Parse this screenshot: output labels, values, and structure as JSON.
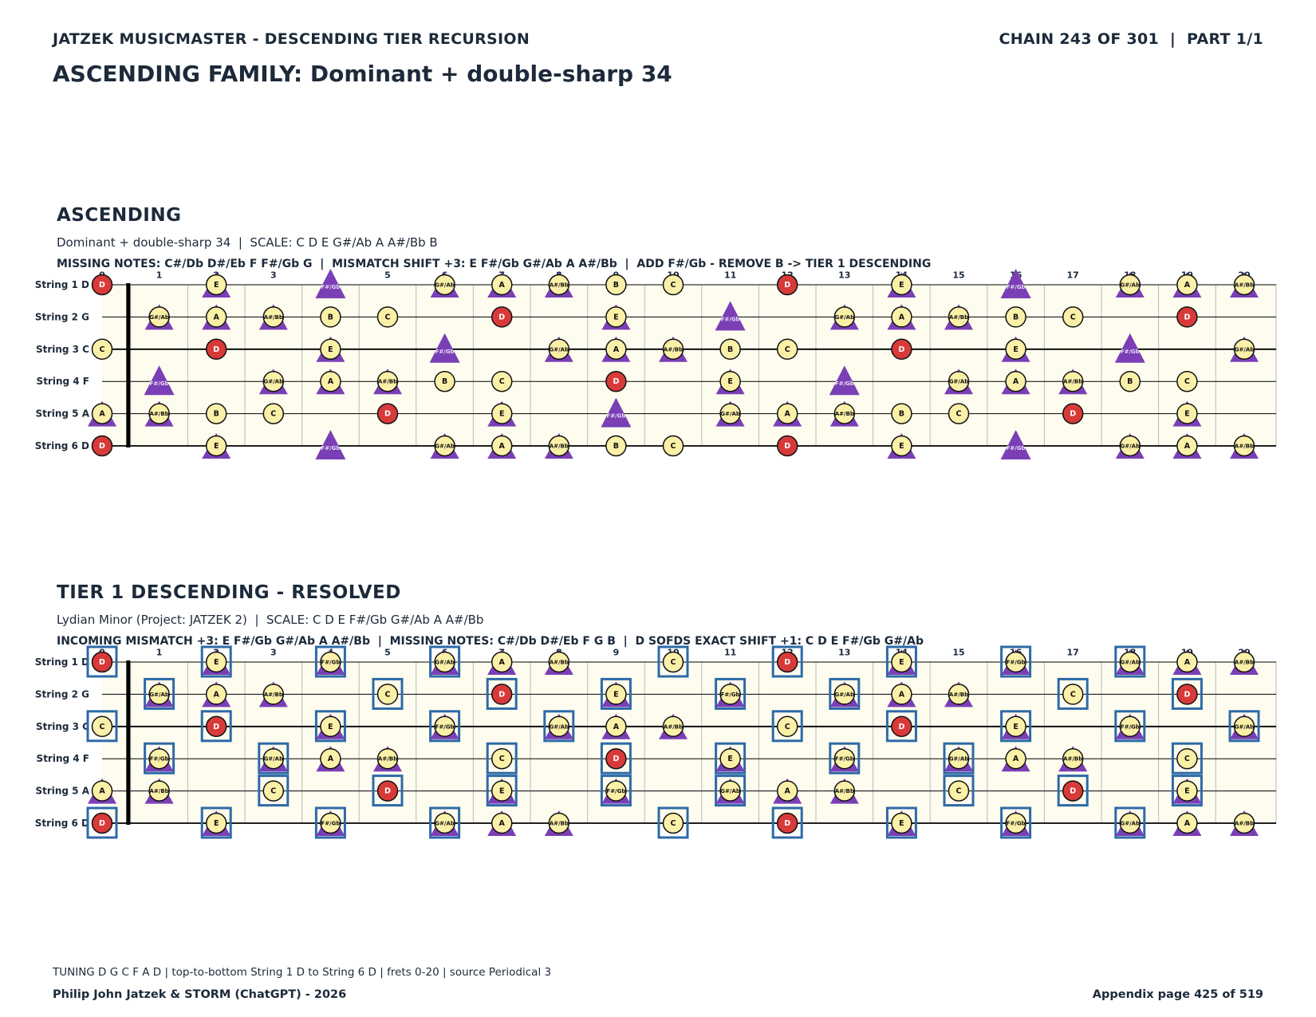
{
  "header": {
    "left": "JATZEK MUSICMASTER - DESCENDING TIER RECURSION",
    "right": "CHAIN 243 OF 301  |  PART 1/1",
    "page_title": "ASCENDING FAMILY: Dominant + double-sharp 34"
  },
  "sections": [
    {
      "title": "ASCENDING",
      "subtitle": "Dominant + double-sharp 34  |  SCALE: C D E G#/Ab A A#/Bb B",
      "info": "MISSING NOTES: C#/Db D#/Eb F F#/Gb G  |  MISMATCH SHIFT +3: E F#/Gb G#/Ab A A#/Bb  |  ADD F#/Gb - REMOVE B -> TIER 1 DESCENDING"
    },
    {
      "title": "TIER 1 DESCENDING - RESOLVED",
      "subtitle": "Lydian Minor (Project: JATZEK 2)  |  SCALE: C D E F#/Gb G#/Ab A A#/Bb",
      "info": "INCOMING MISMATCH +3: E F#/Gb G#/Ab A A#/Bb  |  MISSING NOTES: C#/Db D#/Eb F G B  |  D SOFDS EXACT SHIFT +1: C D E F#/Gb G#/Ab"
    }
  ],
  "fretboard": {
    "strings": [
      "String 1 D",
      "String 2 G",
      "String 3 C",
      "String 4 F",
      "String 5 A",
      "String 6 D"
    ],
    "open_notes": [
      "D",
      "G",
      "C",
      "F",
      "A",
      "D"
    ],
    "fret_numbers": [
      "0",
      "1",
      "2",
      "3",
      "4",
      "5",
      "6",
      "7",
      "8",
      "9",
      "10",
      "11",
      "12",
      "13",
      "14",
      "15",
      "16",
      "17",
      "18",
      "19",
      "20"
    ],
    "root": "D"
  },
  "diagrams": [
    {
      "id": "ascending",
      "scale": [
        "C",
        "D",
        "E",
        "G#/Ab",
        "A",
        "A#/Bb",
        "B"
      ],
      "triangle_notes": [
        "E",
        "F#/Gb",
        "G#/Ab",
        "A",
        "A#/Bb"
      ],
      "triangle_only": [
        "F#/Gb"
      ],
      "boxed_notes": []
    },
    {
      "id": "tier1",
      "scale": [
        "C",
        "D",
        "E",
        "F#/Gb",
        "G#/Ab",
        "A",
        "A#/Bb"
      ],
      "triangle_notes": [
        "E",
        "F#/Gb",
        "G#/Ab",
        "A",
        "A#/Bb"
      ],
      "triangle_only": [],
      "boxed_notes": [
        "C",
        "D",
        "E",
        "F#/Gb",
        "G#/Ab"
      ]
    }
  ],
  "colors": {
    "text": "#1c2a3a",
    "board_bg": "#fdfcef",
    "note_fill": "#fbf0a8",
    "root_fill": "#d83a3a",
    "triangle": "#7a3fb5",
    "box": "#2d6aa8",
    "line": "#000000",
    "fret_line": "#b9b9b9"
  },
  "footer": {
    "info": "TUNING D G C F A D | top-to-bottom String 1 D to String 6 D | frets 0-20 | source Periodical 3",
    "left": "Philip John Jatzek & STORM (ChatGPT) - 2026",
    "right": "Appendix page 425 of 519"
  }
}
